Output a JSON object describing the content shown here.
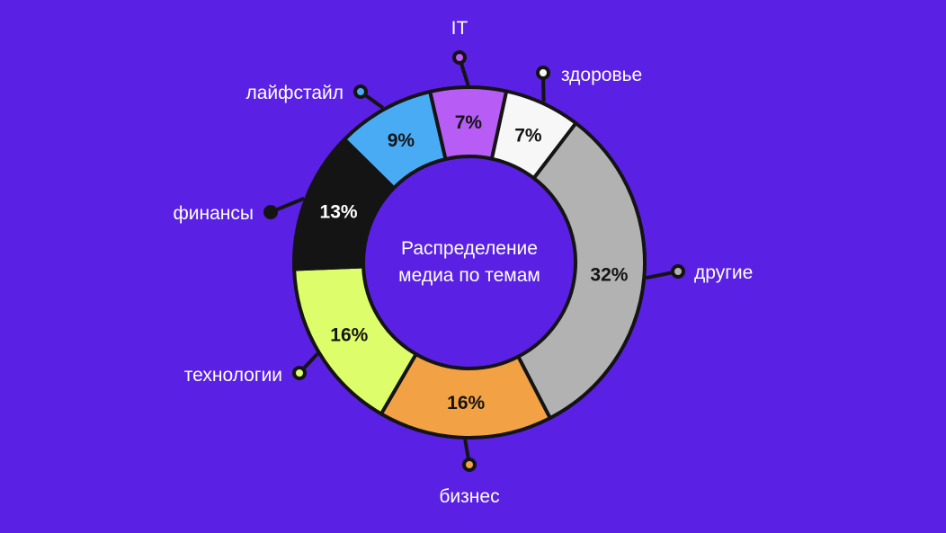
{
  "chart_data": {
    "type": "donut",
    "title": "Распределение медиа по темам",
    "categories": [
      "IT",
      "здоровье",
      "другие",
      "бизнес",
      "технологии",
      "финансы",
      "лайфстайл"
    ],
    "values": [
      7,
      7,
      32,
      16,
      16,
      13,
      9
    ],
    "value_labels": [
      "7%",
      "7%",
      "32%",
      "16%",
      "16%",
      "13%",
      "9%"
    ],
    "colors": [
      "#b75cf5",
      "#f7f7f7",
      "#b2b2b2",
      "#f2a144",
      "#ddfd6a",
      "#141414",
      "#4aabf5"
    ],
    "label_colors": [
      "#141414",
      "#141414",
      "#141414",
      "#141414",
      "#141414",
      "#ffffff",
      "#141414"
    ]
  },
  "colors": {
    "background": "#5a20e3",
    "outline": "#141414",
    "text": "#ffffff"
  }
}
